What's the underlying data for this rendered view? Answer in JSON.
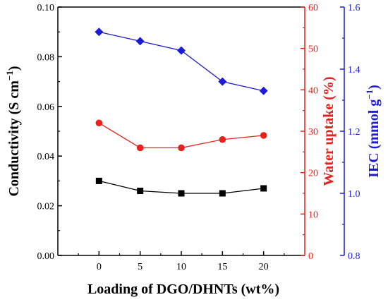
{
  "chart_data": {
    "type": "line",
    "xlabel": "Loading of DGO/DHNTs (wt%)",
    "x": [
      0,
      5,
      10,
      15,
      20
    ],
    "xlim": [
      -5,
      25
    ],
    "xticks": [
      "0",
      "5",
      "10",
      "15",
      "20"
    ],
    "axes": {
      "left": {
        "label": "Conductivity (S cm",
        "label_sup": "−1",
        "label_close": ")",
        "ylim": [
          0.0,
          0.1
        ],
        "ticks": [
          "0.00",
          "0.02",
          "0.04",
          "0.06",
          "0.08",
          "0.10"
        ],
        "color": "#000000"
      },
      "right1": {
        "label": "Water uptake (%)",
        "ylim": [
          0,
          60
        ],
        "ticks": [
          "0",
          "10",
          "20",
          "30",
          "40",
          "50",
          "60"
        ],
        "color": "#e8211c"
      },
      "right2": {
        "label": "IEC (mmol g",
        "label_sup": "−1",
        "label_close": ")",
        "ylim": [
          0.8,
          1.6
        ],
        "ticks": [
          "0.8",
          "1.0",
          "1.2",
          "1.4",
          "1.6"
        ],
        "color": "#1c1cd6"
      }
    },
    "series": [
      {
        "axis": "left",
        "marker": "square",
        "color": "#000000",
        "values": [
          0.03,
          0.026,
          0.025,
          0.025,
          0.027
        ]
      },
      {
        "axis": "right1",
        "marker": "circle",
        "color": "#e8211c",
        "values": [
          32,
          26,
          26,
          28,
          29
        ]
      },
      {
        "axis": "right2",
        "marker": "diamond",
        "color": "#1c1cd6",
        "values": [
          1.52,
          1.49,
          1.46,
          1.36,
          1.33
        ]
      }
    ]
  }
}
